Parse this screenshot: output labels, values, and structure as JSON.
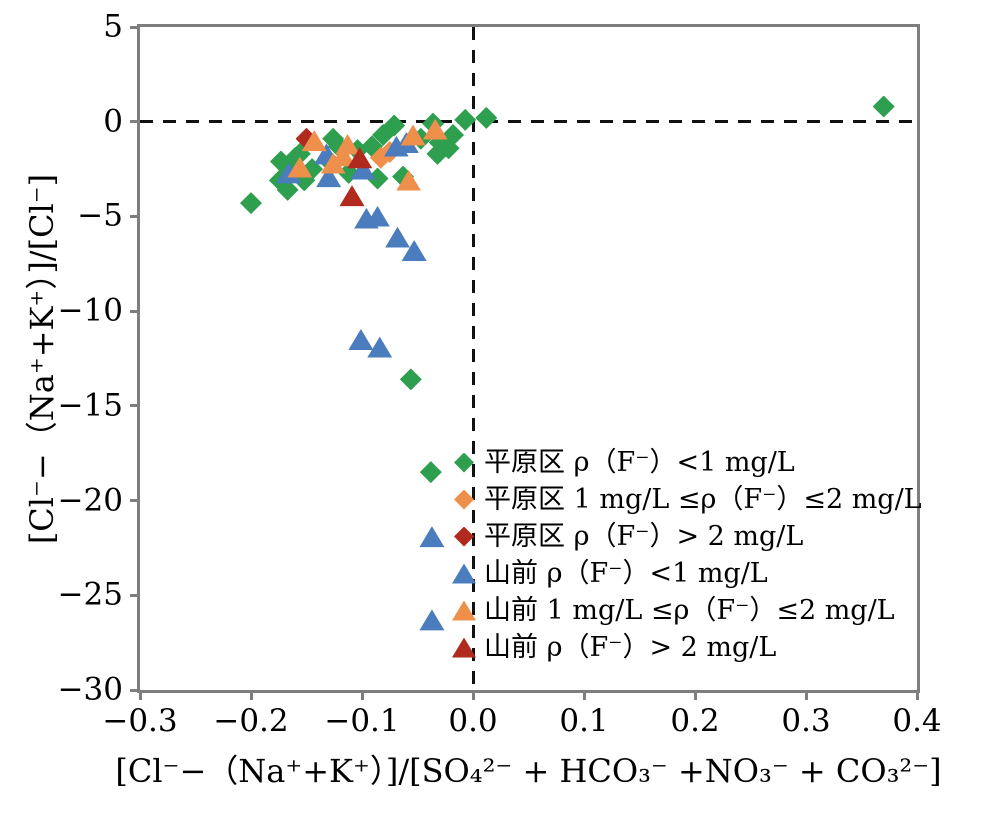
{
  "colors": {
    "green": "#2e9e4f",
    "orange": "#ef8f4c",
    "dark_red": "#b02a1e",
    "blue": "#4a7cbe",
    "axis_gray": "#7e7e7e",
    "dash_black": "#111111",
    "text_black": "#000000"
  },
  "chart_data": {
    "type": "scatter",
    "title": "",
    "xlabel": "[Cl⁻−（Na⁺+K⁺）]/[SO₄²⁻ + HCO₃⁻ +NO₃⁻ + CO₃²⁻]",
    "ylabel": "[Cl⁻−（Na⁺+K⁺）]/[Cl⁻]",
    "xlim": [
      -0.3,
      0.4
    ],
    "ylim": [
      -30,
      5
    ],
    "grid": false,
    "legend_position": "inside lower-middle",
    "reference_lines": {
      "x": 0,
      "y": 0,
      "style": "dashed"
    },
    "x_tick_values": [
      -0.3,
      -0.2,
      -0.1,
      0.0,
      0.1,
      0.2,
      0.3,
      0.4
    ],
    "x_tick_labels": [
      "−0.3",
      "−0.2",
      "−0.1",
      "0.0",
      "0.1",
      "0.2",
      "0.3",
      "0.4"
    ],
    "y_tick_values": [
      5,
      0,
      -5,
      -10,
      -15,
      -20,
      -25,
      -30
    ],
    "y_tick_labels": [
      "5",
      "0",
      "−5",
      "−10",
      "−15",
      "−20",
      "−25",
      "−30"
    ],
    "series": [
      {
        "name": "pingyuan-lt1",
        "label": "平原区 ρ（F⁻）<1 mg/L",
        "marker": "diamond",
        "color": "#2e9e4f",
        "points": [
          [
            -0.2,
            -4.3
          ],
          [
            -0.174,
            -3.1
          ],
          [
            -0.173,
            -2.1
          ],
          [
            -0.167,
            -3.6
          ],
          [
            -0.164,
            -2.6
          ],
          [
            -0.16,
            -1.9
          ],
          [
            -0.156,
            -1.7
          ],
          [
            -0.152,
            -3.1
          ],
          [
            -0.145,
            -2.5
          ],
          [
            -0.129,
            -2.1
          ],
          [
            -0.126,
            -0.9
          ],
          [
            -0.121,
            -1.3
          ],
          [
            -0.112,
            -2.7
          ],
          [
            -0.104,
            -1.5
          ],
          [
            -0.091,
            -1.3
          ],
          [
            -0.086,
            -3.0
          ],
          [
            -0.081,
            -0.7
          ],
          [
            -0.071,
            -0.2
          ],
          [
            -0.063,
            -2.9
          ],
          [
            -0.047,
            -0.9
          ],
          [
            -0.036,
            -0.1
          ],
          [
            -0.032,
            -1.7
          ],
          [
            -0.03,
            -1.1
          ],
          [
            -0.022,
            -1.4
          ],
          [
            -0.018,
            -0.7
          ],
          [
            -0.007,
            0.1
          ],
          [
            0.012,
            0.2
          ],
          [
            -0.056,
            -13.6
          ],
          [
            -0.038,
            -18.5
          ],
          [
            0.37,
            0.8
          ]
        ]
      },
      {
        "name": "pingyuan-1to2",
        "label": "平原区 1 mg/L ≤ρ（F⁻）≤2 mg/L",
        "marker": "diamond",
        "color": "#ef8f4c",
        "points": [
          [
            -0.083,
            -1.9
          ],
          [
            -0.075,
            -1.6
          ]
        ]
      },
      {
        "name": "pingyuan-gt2",
        "label": "平原区 ρ（F⁻）> 2 mg/L",
        "marker": "diamond",
        "color": "#b02a1e",
        "points": [
          [
            -0.15,
            -0.9
          ]
        ]
      },
      {
        "name": "shanqian-lt1",
        "label": "山前 ρ（F⁻）<1 mg/L",
        "marker": "triangle",
        "color": "#4a7cbe",
        "points": [
          [
            -0.166,
            -2.7
          ],
          [
            -0.132,
            -1.7
          ],
          [
            -0.13,
            -2.9
          ],
          [
            -0.099,
            -2.5
          ],
          [
            -0.069,
            -1.3
          ],
          [
            -0.06,
            -1.1
          ],
          [
            -0.096,
            -5.1
          ],
          [
            -0.086,
            -5.0
          ],
          [
            -0.068,
            -6.1
          ],
          [
            -0.053,
            -6.8
          ],
          [
            -0.101,
            -11.5
          ],
          [
            -0.084,
            -11.9
          ],
          [
            -0.037,
            -21.9
          ],
          [
            -0.037,
            -26.3
          ]
        ]
      },
      {
        "name": "shanqian-1to2",
        "label": "山前 1 mg/L ≤ρ（F⁻）≤2 mg/L",
        "marker": "triangle",
        "color": "#ef8f4c",
        "points": [
          [
            -0.156,
            -2.4
          ],
          [
            -0.143,
            -1.0
          ],
          [
            -0.126,
            -2.2
          ],
          [
            -0.117,
            -1.8
          ],
          [
            -0.113,
            -1.2
          ],
          [
            -0.058,
            -3.1
          ],
          [
            -0.054,
            -0.7
          ],
          [
            -0.034,
            -0.4
          ]
        ]
      },
      {
        "name": "shanqian-gt2",
        "label": "山前 ρ（F⁻）> 2 mg/L",
        "marker": "triangle",
        "color": "#b02a1e",
        "points": [
          [
            -0.102,
            -1.9
          ],
          [
            -0.109,
            -3.9
          ]
        ]
      }
    ]
  }
}
